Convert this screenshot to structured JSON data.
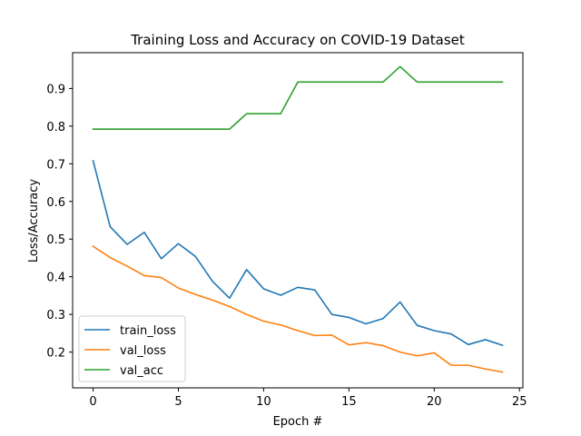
{
  "chart_data": {
    "type": "line",
    "title": "Training Loss and Accuracy on COVID-19 Dataset",
    "xlabel": "Epoch #",
    "ylabel": "Loss/Accuracy",
    "xlim": [
      -1.2,
      25.2
    ],
    "ylim": [
      0.105,
      0.995
    ],
    "xticks": [
      0,
      5,
      10,
      15,
      20,
      25
    ],
    "xtick_labels": [
      "0",
      "5",
      "10",
      "15",
      "20",
      "25"
    ],
    "yticks": [
      0.2,
      0.3,
      0.4,
      0.5,
      0.6,
      0.7,
      0.8,
      0.9
    ],
    "ytick_labels": [
      "0.2",
      "0.3",
      "0.4",
      "0.5",
      "0.6",
      "0.7",
      "0.8",
      "0.9"
    ],
    "grid": false,
    "legend_position": "lower-left",
    "x": [
      0,
      1,
      2,
      3,
      4,
      5,
      6,
      7,
      8,
      9,
      10,
      11,
      12,
      13,
      14,
      15,
      16,
      17,
      18,
      19,
      20,
      21,
      22,
      23,
      24
    ],
    "series": [
      {
        "name": "train_loss",
        "color": "#1f77b4",
        "values": [
          0.708,
          0.533,
          0.486,
          0.518,
          0.448,
          0.488,
          0.454,
          0.388,
          0.343,
          0.419,
          0.368,
          0.351,
          0.372,
          0.365,
          0.3,
          0.292,
          0.275,
          0.289,
          0.333,
          0.271,
          0.257,
          0.248,
          0.22,
          0.233,
          0.218
        ]
      },
      {
        "name": "val_loss",
        "color": "#ff7f0e",
        "values": [
          0.481,
          0.451,
          0.428,
          0.403,
          0.398,
          0.37,
          0.353,
          0.338,
          0.321,
          0.3,
          0.282,
          0.272,
          0.257,
          0.244,
          0.245,
          0.219,
          0.225,
          0.217,
          0.2,
          0.19,
          0.198,
          0.165,
          0.165,
          0.155,
          0.147
        ]
      },
      {
        "name": "val_acc",
        "color": "#2ca02c",
        "values": [
          0.792,
          0.792,
          0.792,
          0.792,
          0.792,
          0.792,
          0.792,
          0.792,
          0.792,
          0.833,
          0.833,
          0.833,
          0.917,
          0.917,
          0.917,
          0.917,
          0.917,
          0.917,
          0.958,
          0.917,
          0.917,
          0.917,
          0.917,
          0.917,
          0.917
        ]
      }
    ]
  }
}
